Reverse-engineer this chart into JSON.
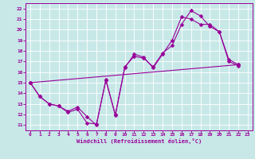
{
  "xlabel": "Windchill (Refroidissement éolien,°C)",
  "ylabel": "",
  "xlim": [
    -0.5,
    23.5
  ],
  "ylim": [
    10.5,
    22.5
  ],
  "xticks": [
    0,
    1,
    2,
    3,
    4,
    5,
    6,
    7,
    8,
    9,
    10,
    11,
    12,
    13,
    14,
    15,
    16,
    17,
    18,
    19,
    20,
    21,
    22,
    23
  ],
  "yticks": [
    11,
    12,
    13,
    14,
    15,
    16,
    17,
    18,
    19,
    20,
    21,
    22
  ],
  "bg_color": "#c8e8e8",
  "grid_color": "#a8c8c8",
  "line_color": "#990099",
  "line1_x": [
    0,
    1,
    2,
    3,
    4,
    5,
    6,
    7,
    8,
    9,
    10,
    11,
    12,
    13,
    14,
    15,
    16,
    17,
    18,
    19,
    20,
    21,
    22
  ],
  "line1_y": [
    15.0,
    13.7,
    13.0,
    12.8,
    12.2,
    12.5,
    11.2,
    11.1,
    15.2,
    12.0,
    16.5,
    17.5,
    17.3,
    16.5,
    17.8,
    18.5,
    20.5,
    21.8,
    21.3,
    20.3,
    19.8,
    17.2,
    16.7
  ],
  "line2_x": [
    0,
    1,
    2,
    3,
    4,
    5,
    6,
    7,
    8,
    9,
    10,
    11,
    12,
    13,
    14,
    15,
    16,
    17,
    18,
    19,
    20,
    21,
    22
  ],
  "line2_y": [
    15.0,
    13.7,
    13.0,
    12.8,
    12.3,
    12.7,
    11.8,
    11.0,
    15.3,
    11.9,
    16.4,
    17.7,
    17.4,
    16.4,
    17.7,
    19.0,
    21.2,
    21.0,
    20.5,
    20.5,
    19.8,
    17.0,
    16.6
  ],
  "line3_x": [
    0,
    22
  ],
  "line3_y": [
    15.0,
    16.7
  ]
}
